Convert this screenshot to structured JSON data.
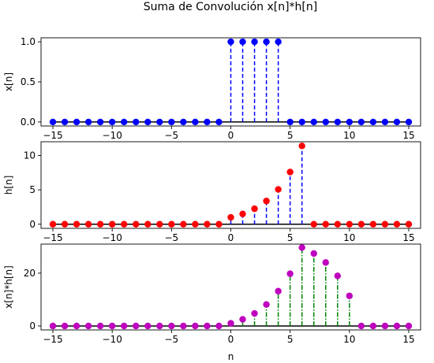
{
  "chart_data": [
    {
      "type": "stem",
      "title": "Suma de Convolución x[n]*h[n]",
      "ylabel": "x[n]",
      "xlim": [
        -16,
        16
      ],
      "ylim": [
        -0.05,
        1.05
      ],
      "x_ticks": [
        -15,
        -10,
        -5,
        0,
        5,
        10,
        15
      ],
      "y_ticks": [
        0.0,
        0.5,
        1.0
      ],
      "y_tick_labels": [
        "0.0",
        "0.5",
        "1.0"
      ],
      "marker_color": "#0000ff",
      "stem_color": "#0000ff",
      "stem_style": "dashed",
      "baseline_color": "#000000",
      "x": [
        -15,
        -14,
        -13,
        -12,
        -11,
        -10,
        -9,
        -8,
        -7,
        -6,
        -5,
        -4,
        -3,
        -2,
        -1,
        0,
        1,
        2,
        3,
        4,
        5,
        6,
        7,
        8,
        9,
        10,
        11,
        12,
        13,
        14,
        15
      ],
      "y": [
        0,
        0,
        0,
        0,
        0,
        0,
        0,
        0,
        0,
        0,
        0,
        0,
        0,
        0,
        0,
        1,
        1,
        1,
        1,
        1,
        0,
        0,
        0,
        0,
        0,
        0,
        0,
        0,
        0,
        0,
        0
      ]
    },
    {
      "type": "stem",
      "ylabel": "h[n]",
      "xlim": [
        -16,
        16
      ],
      "ylim": [
        -0.6,
        12.0
      ],
      "x_ticks": [
        -15,
        -10,
        -5,
        0,
        5,
        10,
        15
      ],
      "y_ticks": [
        0,
        5,
        10
      ],
      "y_tick_labels": [
        "0",
        "5",
        "10"
      ],
      "marker_color": "#ff0000",
      "stem_color": "#0000ff",
      "stem_style": "dashed",
      "baseline_color": "#000000",
      "x": [
        -15,
        -14,
        -13,
        -12,
        -11,
        -10,
        -9,
        -8,
        -7,
        -6,
        -5,
        -4,
        -3,
        -2,
        -1,
        0,
        1,
        2,
        3,
        4,
        5,
        6,
        7,
        8,
        9,
        10,
        11,
        12,
        13,
        14,
        15
      ],
      "y": [
        0,
        0,
        0,
        0,
        0,
        0,
        0,
        0,
        0,
        0,
        0,
        0,
        0,
        0,
        0,
        1.0,
        1.5,
        2.25,
        3.38,
        5.06,
        7.59,
        11.39,
        0,
        0,
        0,
        0,
        0,
        0,
        0,
        0,
        0
      ]
    },
    {
      "type": "stem",
      "xlabel": "n",
      "ylabel": "x[n]*h[n]",
      "xlim": [
        -16,
        16
      ],
      "ylim": [
        -1.5,
        31.0
      ],
      "x_ticks": [
        -15,
        -10,
        -5,
        0,
        5,
        10,
        15
      ],
      "y_ticks": [
        0,
        20
      ],
      "y_tick_labels": [
        "0",
        "20"
      ],
      "marker_color": "#bf00bf",
      "stem_color": "#008000",
      "stem_style": "dashdot",
      "baseline_color": "#000000",
      "x": [
        -15,
        -14,
        -13,
        -12,
        -11,
        -10,
        -9,
        -8,
        -7,
        -6,
        -5,
        -4,
        -3,
        -2,
        -1,
        0,
        1,
        2,
        3,
        4,
        5,
        6,
        7,
        8,
        9,
        10,
        11,
        12,
        13,
        14,
        15
      ],
      "y": [
        0,
        0,
        0,
        0,
        0,
        0,
        0,
        0,
        0,
        0,
        0,
        0,
        0,
        0,
        0,
        1.0,
        2.5,
        4.75,
        8.13,
        13.19,
        19.78,
        29.67,
        27.42,
        24.04,
        18.98,
        11.39,
        0,
        0,
        0,
        0,
        0
      ]
    }
  ]
}
